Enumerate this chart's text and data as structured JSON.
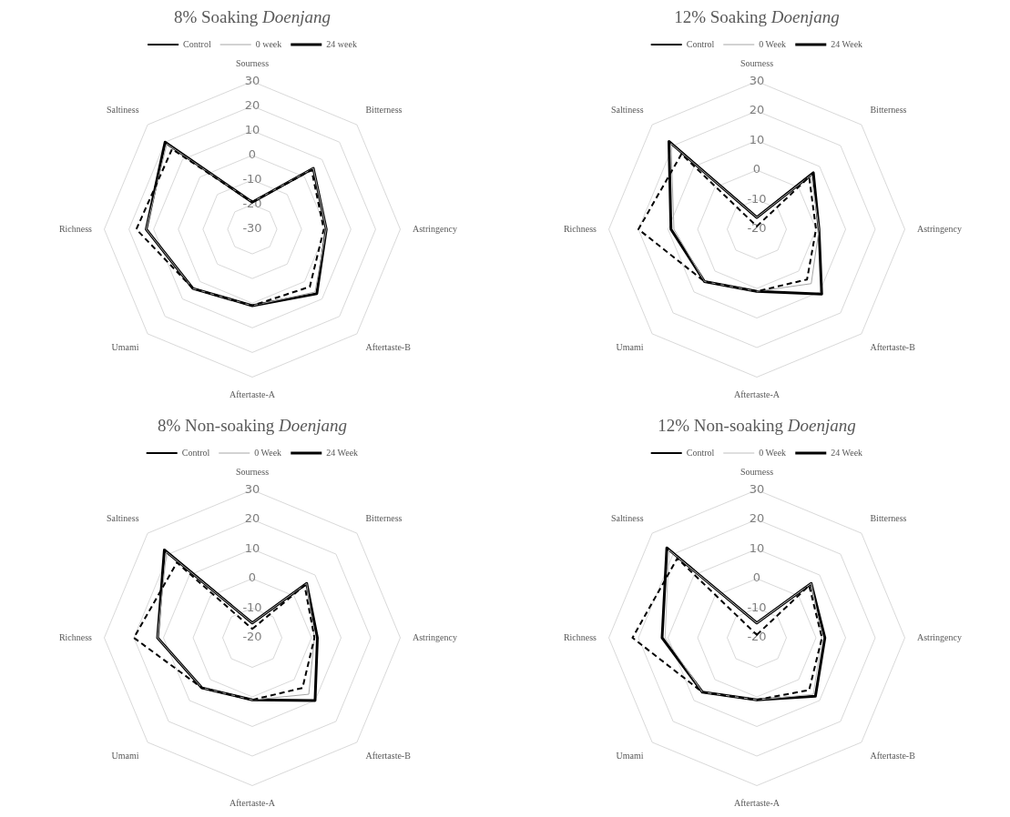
{
  "chart_data": [
    {
      "type": "radar",
      "title": "8% Soaking Doenjang",
      "categories": [
        "Sourness",
        "Bitterness",
        "Astringency",
        "Aftertaste-B",
        "Aftertaste-A",
        "Umami",
        "Richness",
        "Saltiness"
      ],
      "ylim": [
        -30,
        30
      ],
      "yticks": [
        -30,
        -20,
        -10,
        0,
        10,
        20,
        30
      ],
      "grid": true,
      "legend": "top",
      "marker": "none",
      "series": [
        {
          "name": "Control",
          "color": "#000000",
          "line_style": "dashed",
          "values": [
            -19,
            4,
            -1,
            3,
            1,
            4,
            17,
            16
          ]
        },
        {
          "name": "0 week",
          "color": "#a6a6a6",
          "line_style": "solid",
          "values": [
            -19,
            5,
            0,
            6,
            1,
            4,
            13,
            19
          ]
        },
        {
          "name": "24 week",
          "color": "#000000",
          "line_style": "solid",
          "values": [
            -19,
            5,
            0,
            7,
            1,
            4,
            13,
            20
          ]
        }
      ]
    },
    {
      "type": "radar",
      "title": "12% Soaking Doenjang",
      "categories": [
        "Sourness",
        "Bitterness",
        "Astringency",
        "Aftertaste-B",
        "Aftertaste-A",
        "Umami",
        "Richness",
        "Saltiness"
      ],
      "ylim": [
        -20,
        30
      ],
      "yticks": [
        -20,
        -10,
        0,
        10,
        20,
        30
      ],
      "grid": true,
      "legend": "top",
      "marker": "none",
      "series": [
        {
          "name": "Control",
          "color": "#000000",
          "line_style": "dashed",
          "values": [
            -19,
            5,
            0,
            4,
            1,
            5,
            20,
            16
          ]
        },
        {
          "name": "0 Week",
          "color": "#a6a6a6",
          "line_style": "solid",
          "values": [
            -16,
            6,
            1,
            6,
            1,
            5,
            8,
            21
          ]
        },
        {
          "name": "24 Week",
          "color": "#000000",
          "line_style": "solid",
          "values": [
            -16,
            7,
            1,
            11,
            1,
            5,
            9,
            22
          ]
        }
      ]
    },
    {
      "type": "radar",
      "title": "8% Non-soaking Doenjang",
      "categories": [
        "Sourness",
        "Bitterness",
        "Astringency",
        "Aftertaste-B",
        "Aftertaste-A",
        "Umami",
        "Richness",
        "Saltiness"
      ],
      "ylim": [
        -20,
        30
      ],
      "yticks": [
        -20,
        -10,
        0,
        10,
        20,
        30
      ],
      "grid": true,
      "legend": "top",
      "marker": "none",
      "series": [
        {
          "name": "Control",
          "color": "#000000",
          "line_style": "dashed",
          "values": [
            -17,
            5,
            1,
            4,
            1,
            4,
            20,
            16
          ]
        },
        {
          "name": "0 Week",
          "color": "#a6a6a6",
          "line_style": "solid",
          "values": [
            -15,
            6,
            1,
            7,
            1,
            4,
            12,
            21
          ]
        },
        {
          "name": "24 Week",
          "color": "#000000",
          "line_style": "solid",
          "values": [
            -15,
            6,
            2,
            10,
            1,
            4,
            12,
            22
          ]
        }
      ]
    },
    {
      "type": "radar",
      "title": "12% Non-soaking Doenjang",
      "categories": [
        "Sourness",
        "Bitterness",
        "Astringency",
        "Aftertaste-B",
        "Aftertaste-A",
        "Umami",
        "Richness",
        "Saltiness"
      ],
      "ylim": [
        -20,
        30
      ],
      "yticks": [
        -20,
        -10,
        0,
        10,
        20,
        30
      ],
      "grid": true,
      "legend": "top",
      "marker": "none",
      "series": [
        {
          "name": "Control",
          "color": "#000000",
          "line_style": "dashed",
          "values": [
            -19,
            5,
            2,
            5,
            1,
            6,
            22,
            18
          ]
        },
        {
          "name": "0 Week",
          "color": "#bfbfbf",
          "line_style": "solid",
          "values": [
            -15,
            6,
            2,
            7,
            1,
            6,
            11,
            22
          ]
        },
        {
          "name": "24 Week",
          "color": "#000000",
          "line_style": "solid",
          "values": [
            -15,
            6,
            3,
            8,
            1,
            6,
            12,
            23
          ]
        }
      ]
    }
  ]
}
